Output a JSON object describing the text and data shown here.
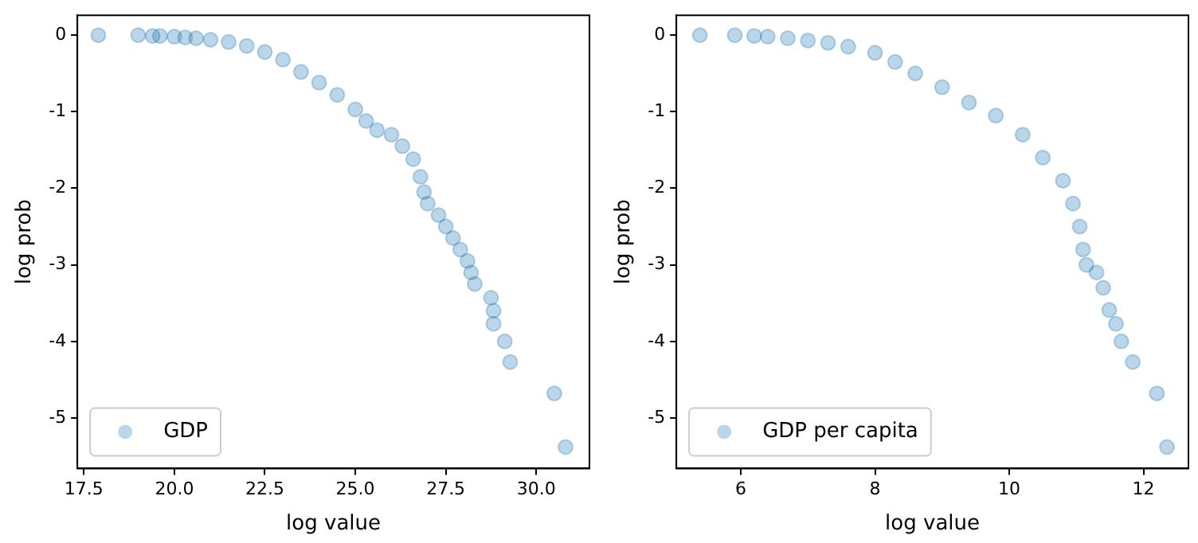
{
  "chart_data": [
    {
      "type": "scatter",
      "xlabel": "log value",
      "ylabel": "log prob",
      "legend": "bottom left",
      "marker": "circle",
      "grid": false,
      "xlim": [
        17.32,
        31.47
      ],
      "ylim": [
        -5.66,
        0.26
      ],
      "xticks": [
        {
          "value": 17.5,
          "label": "17.5"
        },
        {
          "value": 20,
          "label": "20.0"
        },
        {
          "value": 22.5,
          "label": "22.5"
        },
        {
          "value": 25,
          "label": "25.0"
        },
        {
          "value": 27.5,
          "label": "27.5"
        },
        {
          "value": 30,
          "label": "30.0"
        }
      ],
      "yticks": [
        0,
        -1,
        -2,
        -3,
        -4,
        -5
      ],
      "series": [
        {
          "name": "GDP",
          "color": "#1f77b4",
          "x": [
            17.9,
            19.0,
            19.4,
            19.6,
            20.0,
            20.3,
            20.6,
            21.0,
            21.5,
            22.0,
            22.5,
            23.0,
            23.5,
            24.0,
            24.5,
            25.0,
            25.3,
            25.6,
            26.0,
            26.3,
            26.6,
            26.8,
            26.9,
            27.0,
            27.3,
            27.5,
            27.7,
            27.9,
            28.1,
            28.2,
            28.3,
            28.75,
            28.82,
            28.82,
            29.13,
            29.28,
            30.5,
            30.81
          ],
          "values": [
            0,
            0,
            -0.01,
            -0.01,
            -0.02,
            -0.03,
            -0.04,
            -0.06,
            -0.09,
            -0.14,
            -0.22,
            -0.32,
            -0.48,
            -0.62,
            -0.78,
            -0.97,
            -1.12,
            -1.24,
            -1.3,
            -1.45,
            -1.62,
            -1.85,
            -2.05,
            -2.2,
            -2.35,
            -2.5,
            -2.65,
            -2.8,
            -2.95,
            -3.1,
            -3.25,
            -3.43,
            -3.6,
            -3.77,
            -4.0,
            -4.27,
            -4.68,
            -5.38
          ]
        }
      ]
    },
    {
      "type": "scatter",
      "xlabel": "log value",
      "ylabel": "log prob",
      "legend": "bottom left",
      "marker": "circle",
      "grid": false,
      "xlim": [
        5.04,
        12.67
      ],
      "ylim": [
        -5.66,
        0.26
      ],
      "xticks": [
        6,
        8,
        10,
        12
      ],
      "yticks": [
        0,
        -1,
        -2,
        -3,
        -4,
        -5
      ],
      "series": [
        {
          "name": "GDP per capita",
          "color": "#1f77b4",
          "x": [
            5.39,
            5.91,
            6.2,
            6.4,
            6.7,
            7.0,
            7.3,
            7.6,
            8.0,
            8.3,
            8.6,
            9.0,
            9.4,
            9.8,
            10.2,
            10.5,
            10.8,
            10.95,
            11.05,
            11.1,
            11.15,
            11.3,
            11.4,
            11.49,
            11.59,
            11.67,
            11.84,
            12.2,
            12.35
          ],
          "values": [
            0,
            0,
            -0.01,
            -0.02,
            -0.04,
            -0.07,
            -0.1,
            -0.15,
            -0.23,
            -0.35,
            -0.5,
            -0.68,
            -0.88,
            -1.05,
            -1.3,
            -1.6,
            -1.9,
            -2.2,
            -2.5,
            -2.8,
            -3.0,
            -3.1,
            -3.3,
            -3.59,
            -3.77,
            -4.0,
            -4.27,
            -4.68,
            -5.38
          ]
        }
      ]
    }
  ]
}
